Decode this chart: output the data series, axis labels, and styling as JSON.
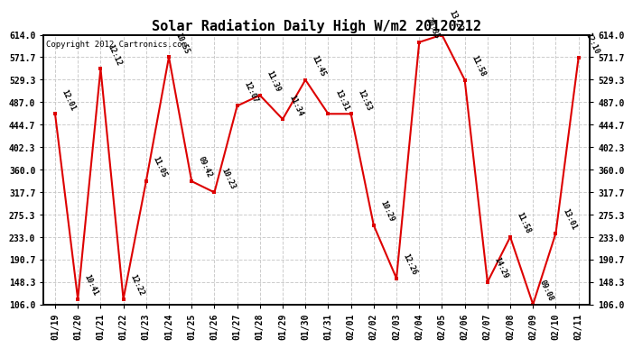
{
  "title": "Solar Radiation Daily High W/m2 20120212",
  "copyright": "Copyright 2012 Cartronics.com",
  "dates": [
    "01/19",
    "01/20",
    "01/21",
    "01/22",
    "01/23",
    "01/24",
    "01/25",
    "01/26",
    "01/27",
    "01/28",
    "01/29",
    "01/30",
    "01/31",
    "02/01",
    "02/02",
    "02/03",
    "02/04",
    "02/05",
    "02/06",
    "02/07",
    "02/08",
    "02/09",
    "02/10",
    "02/11"
  ],
  "values": [
    465,
    116,
    550,
    116,
    338,
    572,
    338,
    317,
    480,
    500,
    455,
    529,
    465,
    465,
    255,
    155,
    600,
    614,
    529,
    148,
    233,
    106,
    240,
    571
  ],
  "labels": [
    "12:01",
    "10:41",
    "12:12",
    "12:22",
    "11:05",
    "10:55",
    "09:42",
    "10:23",
    "12:07",
    "11:39",
    "11:34",
    "11:45",
    "13:31",
    "12:53",
    "10:29",
    "12:26",
    "20:35",
    "13:22",
    "11:58",
    "14:29",
    "11:58",
    "09:08",
    "13:01",
    "12:10"
  ],
  "yticks": [
    106.0,
    148.3,
    190.7,
    233.0,
    275.3,
    317.7,
    360.0,
    402.3,
    444.7,
    487.0,
    529.3,
    571.7,
    614.0
  ],
  "ymin": 106.0,
  "ymax": 614.0,
  "line_color": "#dd0000",
  "marker_color": "#dd0000",
  "bg_color": "#ffffff",
  "grid_color": "#cccccc",
  "title_fontsize": 11,
  "tick_fontsize": 7,
  "label_fontsize": 6.5,
  "copyright_text": "Copyright 2012 Cartronics.com"
}
